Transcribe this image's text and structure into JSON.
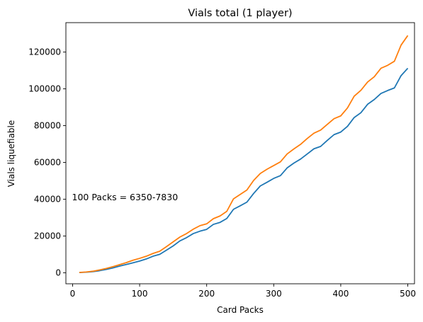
{
  "chart_data": {
    "type": "line",
    "title": "Vials total (1 player)",
    "xlabel": "Card Packs",
    "ylabel": "Vials liquefiable",
    "xlim": [
      -10,
      510
    ],
    "ylim": [
      -6000,
      136000
    ],
    "xticks": [
      0,
      100,
      200,
      300,
      400,
      500
    ],
    "yticks": [
      0,
      20000,
      40000,
      60000,
      80000,
      100000,
      120000
    ],
    "grid": false,
    "annotation": {
      "text": "100 Packs = 6350-7830",
      "x": -1,
      "y": 41000
    },
    "x": [
      10,
      20,
      30,
      40,
      50,
      60,
      70,
      80,
      90,
      100,
      110,
      120,
      130,
      140,
      150,
      160,
      170,
      180,
      190,
      200,
      210,
      220,
      230,
      240,
      250,
      260,
      270,
      280,
      290,
      300,
      310,
      320,
      330,
      340,
      350,
      360,
      370,
      380,
      390,
      400,
      410,
      420,
      430,
      440,
      450,
      460,
      470,
      480,
      490,
      500
    ],
    "series": [
      {
        "color": "#1f77b4",
        "values": [
          100,
          300,
          600,
          1100,
          1800,
          2600,
          3600,
          4500,
          5400,
          6350,
          7500,
          9000,
          10000,
          12300,
          14600,
          17300,
          19100,
          21300,
          22600,
          23600,
          26300,
          27400,
          29500,
          34500,
          36400,
          38400,
          43100,
          47200,
          49200,
          51300,
          52800,
          57000,
          59600,
          61800,
          64600,
          67400,
          68700,
          72000,
          75100,
          76500,
          79600,
          84400,
          87000,
          91600,
          94200,
          97500,
          99100,
          100500,
          107200,
          111200
        ]
      },
      {
        "color": "#ff7f0e",
        "values": [
          150,
          400,
          800,
          1500,
          2300,
          3300,
          4400,
          5500,
          6800,
          7830,
          9000,
          10500,
          11700,
          14200,
          16800,
          19400,
          21300,
          23700,
          25600,
          26600,
          29400,
          30900,
          33400,
          40200,
          42600,
          45000,
          50200,
          54000,
          56300,
          58300,
          60300,
          64600,
          67300,
          69800,
          73000,
          75900,
          77600,
          80700,
          83800,
          85300,
          89600,
          96000,
          99200,
          103700,
          106600,
          111200,
          112800,
          115000,
          123800,
          129000
        ]
      }
    ]
  }
}
